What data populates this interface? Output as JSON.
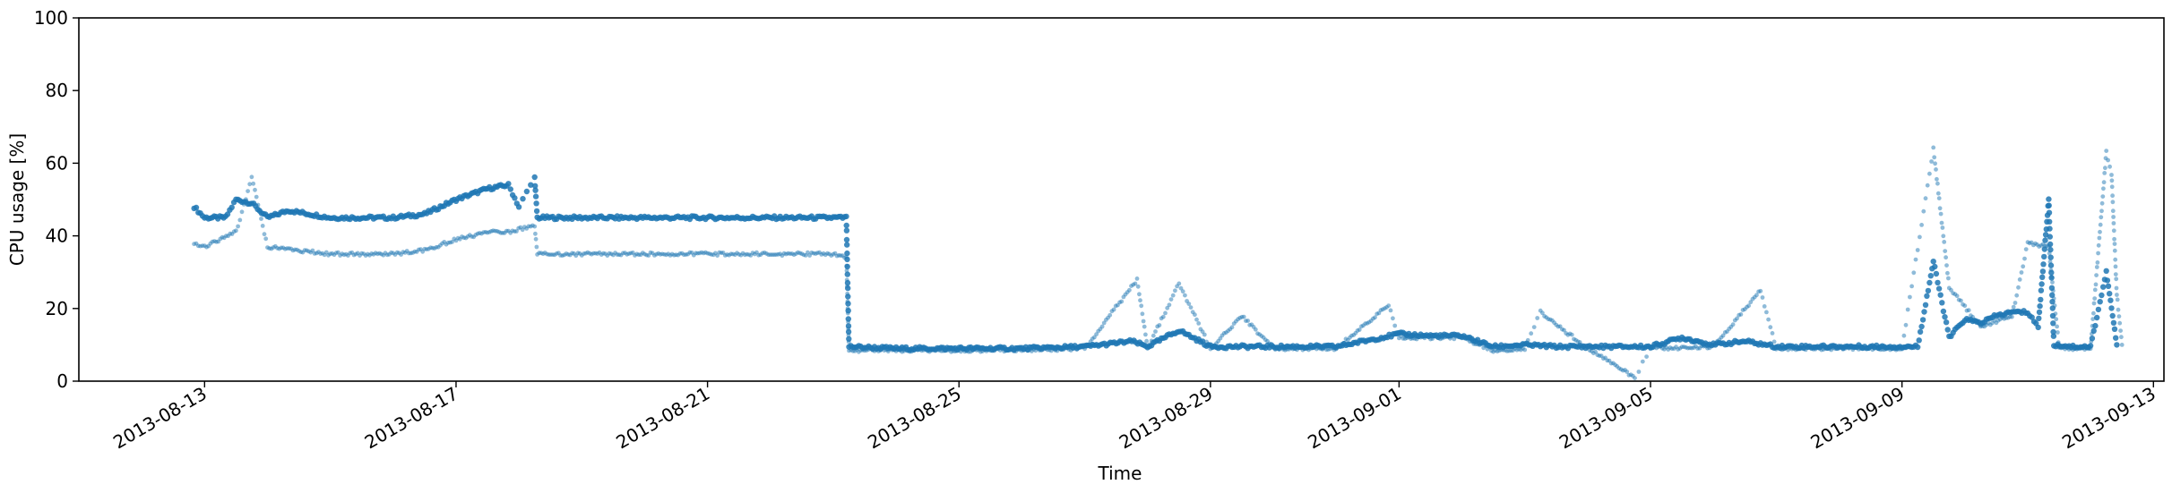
{
  "chart_data": {
    "type": "scatter",
    "title": "",
    "xlabel": "Time",
    "ylabel": "CPU usage [%]",
    "xlim": [
      "2013-08-11T00:00",
      "2013-09-13T04:00"
    ],
    "ylim": [
      0,
      100
    ],
    "x_ticks": [
      "2013-08-13",
      "2013-08-17",
      "2013-08-21",
      "2013-08-25",
      "2013-08-29",
      "2013-09-01",
      "2013-09-05",
      "2013-09-09",
      "2013-09-13"
    ],
    "y_ticks": [
      0,
      20,
      40,
      60,
      80,
      100
    ],
    "grid": false,
    "legend": false,
    "color": "#1f77b4",
    "series": [
      {
        "values": [
          [
            "2013-08-12T20:00",
            48
          ],
          [
            "2013-08-13T00:00",
            45
          ],
          [
            "2013-08-13T08:00",
            45
          ],
          [
            "2013-08-13T12:00",
            50
          ],
          [
            "2013-08-13T18:00",
            49
          ],
          [
            "2013-08-14T00:00",
            45
          ],
          [
            "2013-08-14T08:00",
            47
          ],
          [
            "2013-08-15T00:00",
            45
          ],
          [
            "2013-08-16T00:00",
            45
          ],
          [
            "2013-08-16T12:00",
            46
          ],
          [
            "2013-08-17T00:00",
            50
          ],
          [
            "2013-08-17T12:00",
            53
          ],
          [
            "2013-08-17T20:00",
            54
          ],
          [
            "2013-08-18T00:00",
            48
          ],
          [
            "2013-08-18T06:00",
            56
          ],
          [
            "2013-08-18T07:00",
            45
          ],
          [
            "2013-08-19T00:00",
            45
          ],
          [
            "2013-08-20T00:00",
            45
          ],
          [
            "2013-08-21T00:00",
            45
          ],
          [
            "2013-08-22T00:00",
            45
          ],
          [
            "2013-08-23T00:00",
            45
          ],
          [
            "2013-08-23T05:00",
            45
          ],
          [
            "2013-08-23T06:00",
            9.5
          ],
          [
            "2013-08-24T00:00",
            9
          ],
          [
            "2013-08-25T00:00",
            9
          ],
          [
            "2013-08-26T00:00",
            9
          ],
          [
            "2013-08-27T00:00",
            9.5
          ],
          [
            "2013-08-27T18:00",
            11
          ],
          [
            "2013-08-28T00:00",
            9.5
          ],
          [
            "2013-08-28T12:00",
            14
          ],
          [
            "2013-08-29T00:00",
            9.5
          ],
          [
            "2013-08-30T00:00",
            9.5
          ],
          [
            "2013-08-31T00:00",
            9.5
          ],
          [
            "2013-09-01T00:00",
            13
          ],
          [
            "2013-09-01T12:00",
            12.5
          ],
          [
            "2013-09-02T00:00",
            12.5
          ],
          [
            "2013-09-02T12:00",
            9.5
          ],
          [
            "2013-09-03T00:00",
            10
          ],
          [
            "2013-09-03T12:00",
            9.5
          ],
          [
            "2013-09-04T00:00",
            9.5
          ],
          [
            "2013-09-05T00:00",
            9.5
          ],
          [
            "2013-09-05T12:00",
            12
          ],
          [
            "2013-09-06T00:00",
            10
          ],
          [
            "2013-09-06T12:00",
            11
          ],
          [
            "2013-09-07T00:00",
            9.5
          ],
          [
            "2013-09-08T00:00",
            9.5
          ],
          [
            "2013-09-09T00:00",
            9.5
          ],
          [
            "2013-09-09T06:00",
            9.5
          ],
          [
            "2013-09-09T12:00",
            33
          ],
          [
            "2013-09-09T18:00",
            12
          ],
          [
            "2013-09-10T00:00",
            17
          ],
          [
            "2013-09-10T06:00",
            16
          ],
          [
            "2013-09-10T12:00",
            18
          ],
          [
            "2013-09-10T18:00",
            19
          ],
          [
            "2013-09-11T00:00",
            19
          ],
          [
            "2013-09-11T04:00",
            15
          ],
          [
            "2013-09-11T08:00",
            50
          ],
          [
            "2013-09-11T10:00",
            10
          ],
          [
            "2013-09-11T18:00",
            9.5
          ],
          [
            "2013-09-12T00:00",
            9.5
          ],
          [
            "2013-09-12T06:00",
            30
          ],
          [
            "2013-09-12T10:00",
            10
          ]
        ]
      },
      {
        "values": [
          [
            "2013-08-12T20:00",
            38
          ],
          [
            "2013-08-13T00:00",
            37
          ],
          [
            "2013-08-13T12:00",
            41
          ],
          [
            "2013-08-13T18:00",
            56
          ],
          [
            "2013-08-14T00:00",
            37
          ],
          [
            "2013-08-14T12:00",
            36
          ],
          [
            "2013-08-15T00:00",
            35
          ],
          [
            "2013-08-16T00:00",
            35
          ],
          [
            "2013-08-16T12:00",
            36
          ],
          [
            "2013-08-17T00:00",
            39
          ],
          [
            "2013-08-17T12:00",
            41
          ],
          [
            "2013-08-17T20:00",
            41
          ],
          [
            "2013-08-18T06:00",
            43
          ],
          [
            "2013-08-18T07:00",
            35
          ],
          [
            "2013-08-19T00:00",
            35
          ],
          [
            "2013-08-20T00:00",
            35
          ],
          [
            "2013-08-21T00:00",
            35
          ],
          [
            "2013-08-22T00:00",
            35
          ],
          [
            "2013-08-23T00:00",
            35
          ],
          [
            "2013-08-23T05:00",
            34
          ],
          [
            "2013-08-23T06:00",
            8.5
          ],
          [
            "2013-08-24T00:00",
            8.5
          ],
          [
            "2013-08-25T00:00",
            8.5
          ],
          [
            "2013-08-26T00:00",
            8.5
          ],
          [
            "2013-08-27T00:00",
            9
          ],
          [
            "2013-08-27T20:00",
            28
          ],
          [
            "2013-08-28T00:00",
            9
          ],
          [
            "2013-08-28T12:00",
            27
          ],
          [
            "2013-08-29T00:00",
            9
          ],
          [
            "2013-08-29T12:00",
            18
          ],
          [
            "2013-08-30T00:00",
            9
          ],
          [
            "2013-08-31T00:00",
            9
          ],
          [
            "2013-08-31T20:00",
            21
          ],
          [
            "2013-09-01T00:00",
            12
          ],
          [
            "2013-09-02T00:00",
            12
          ],
          [
            "2013-09-02T12:00",
            8.5
          ],
          [
            "2013-09-03T00:00",
            9
          ],
          [
            "2013-09-03T06:00",
            19
          ],
          [
            "2013-09-04T00:00",
            9
          ],
          [
            "2013-09-04T18:00",
            1
          ],
          [
            "2013-09-05T00:00",
            9
          ],
          [
            "2013-09-06T00:00",
            9.5
          ],
          [
            "2013-09-06T18:00",
            25
          ],
          [
            "2013-09-07T00:00",
            9
          ],
          [
            "2013-09-08T00:00",
            9
          ],
          [
            "2013-09-09T00:00",
            9
          ],
          [
            "2013-09-09T12:00",
            64
          ],
          [
            "2013-09-09T18:00",
            26
          ],
          [
            "2013-09-10T06:00",
            15
          ],
          [
            "2013-09-10T18:00",
            18
          ],
          [
            "2013-09-11T00:00",
            38
          ],
          [
            "2013-09-11T08:00",
            37
          ],
          [
            "2013-09-11T12:00",
            9
          ],
          [
            "2013-09-12T00:00",
            9
          ],
          [
            "2013-09-12T06:00",
            63
          ],
          [
            "2013-09-12T08:00",
            57
          ],
          [
            "2013-09-12T10:00",
            24
          ],
          [
            "2013-09-12T12:00",
            10
          ]
        ]
      }
    ]
  }
}
